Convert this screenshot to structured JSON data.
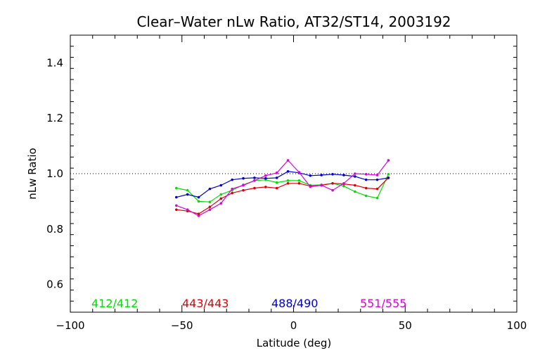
{
  "chart_data": {
    "type": "line",
    "title": "Clear–Water nLw Ratio, AT32/ST14, 2003192",
    "xlabel": "Latitude (deg)",
    "ylabel": "nLw Ratio",
    "xlim": [
      -100,
      100
    ],
    "ylim": [
      0.5,
      1.5
    ],
    "xticks": [
      -100,
      -50,
      0,
      50,
      100
    ],
    "xtick_labels": [
      "−100",
      "−50",
      "0",
      "50",
      "100"
    ],
    "yticks": [
      0.6,
      0.8,
      1.0,
      1.2,
      1.4
    ],
    "ytick_labels": [
      "0.6",
      "0.8",
      "1.0",
      "1.2",
      "1.4"
    ],
    "reference_line": 1.0,
    "grid": false,
    "legend_placement": "bottom",
    "series": [
      {
        "name": "412/412",
        "color": "#00e000",
        "x": [
          -52.5,
          -47.5,
          -42.5,
          -37.5,
          -32.5,
          -27.5,
          -22.5,
          -17.5,
          -12.5,
          -7.5,
          -2.5,
          2.5,
          7.5,
          12.5,
          17.5,
          22.5,
          27.5,
          32.5,
          37.5,
          42.5
        ],
        "y": [
          0.948,
          0.94,
          0.9,
          0.898,
          0.925,
          0.94,
          0.96,
          0.975,
          0.978,
          0.968,
          0.975,
          0.975,
          0.958,
          0.96,
          0.965,
          0.955,
          0.935,
          0.92,
          0.912,
          0.998
        ]
      },
      {
        "name": "443/443",
        "color": "#e00000",
        "x": [
          -52.5,
          -47.5,
          -42.5,
          -37.5,
          -32.5,
          -27.5,
          -22.5,
          -17.5,
          -12.5,
          -7.5,
          -2.5,
          2.5,
          7.5,
          12.5,
          17.5,
          22.5,
          27.5,
          32.5,
          37.5,
          42.5
        ],
        "y": [
          0.87,
          0.865,
          0.855,
          0.88,
          0.91,
          0.93,
          0.94,
          0.948,
          0.952,
          0.948,
          0.965,
          0.965,
          0.955,
          0.958,
          0.965,
          0.963,
          0.958,
          0.948,
          0.945,
          0.985
        ]
      },
      {
        "name": "488/490",
        "color": "#0000d0",
        "x": [
          -52.5,
          -47.5,
          -42.5,
          -37.5,
          -32.5,
          -27.5,
          -22.5,
          -17.5,
          -12.5,
          -7.5,
          -2.5,
          2.5,
          7.5,
          12.5,
          17.5,
          22.5,
          27.5,
          32.5,
          37.5,
          42.5
        ],
        "y": [
          0.915,
          0.925,
          0.915,
          0.945,
          0.958,
          0.978,
          0.983,
          0.985,
          0.983,
          0.985,
          1.008,
          1.003,
          0.993,
          0.995,
          0.998,
          0.995,
          0.99,
          0.978,
          0.978,
          0.985
        ]
      },
      {
        "name": "551/555",
        "color": "#e000e0",
        "x": [
          -52.5,
          -47.5,
          -42.5,
          -37.5,
          -32.5,
          -27.5,
          -22.5,
          -17.5,
          -12.5,
          -7.5,
          -2.5,
          2.5,
          7.5,
          12.5,
          17.5,
          22.5,
          27.5,
          32.5,
          37.5,
          42.5
        ],
        "y": [
          0.885,
          0.87,
          0.848,
          0.87,
          0.893,
          0.945,
          0.958,
          0.975,
          0.993,
          1.003,
          1.048,
          1.005,
          0.953,
          0.958,
          0.94,
          0.965,
          1.0,
          0.998,
          0.995,
          1.048
        ]
      }
    ]
  }
}
